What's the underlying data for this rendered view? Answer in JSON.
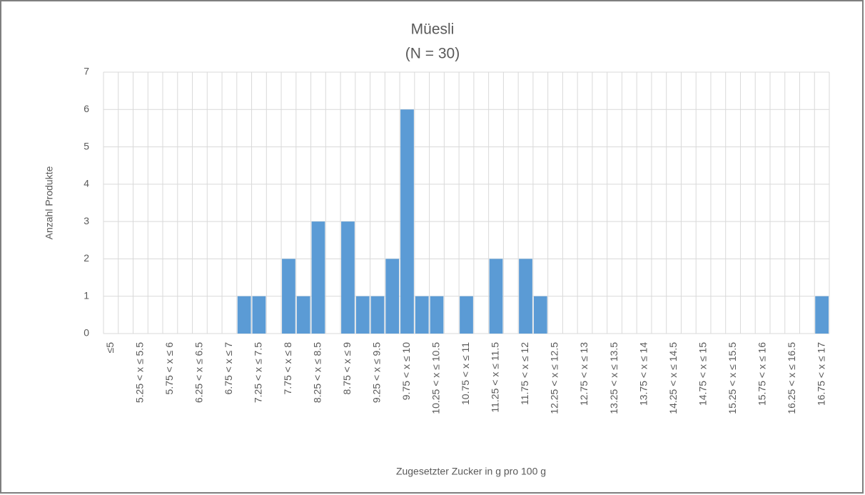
{
  "chart_data": {
    "type": "bar",
    "title": "Müesli",
    "subtitle": "(N = 30)",
    "y_label": "Anzahl Produkte",
    "x_label": "Zugesetzter Zucker in g pro 100 g",
    "categories": [
      "≤5",
      null,
      "5.25 < x ≤ 5.5",
      null,
      "5.75 < x ≤ 6",
      null,
      "6.25 < x ≤ 6.5",
      null,
      "6.75 < x ≤ 7",
      null,
      "7.25 < x ≤ 7.5",
      null,
      "7.75 < x ≤ 8",
      null,
      "8.25 < x ≤ 8.5",
      null,
      "8.75 < x ≤ 9",
      null,
      "9.25 < x ≤ 9.5",
      null,
      "9.75 < x ≤ 10",
      null,
      "10.25 < x ≤ 10.5",
      null,
      "10.75 < x ≤ 11",
      null,
      "11.25 < x ≤ 11.5",
      null,
      "11.75 < x ≤ 12",
      null,
      "12.25 < x ≤ 12.5",
      null,
      "12.75 < x ≤ 13",
      null,
      "13.25 < x ≤ 13.5",
      null,
      "13.75 < x ≤ 14",
      null,
      "14.25 < x ≤ 14.5",
      null,
      "14.75 < x ≤ 15",
      null,
      "15.25 < x ≤ 15.5",
      null,
      "15.75 < x ≤ 16",
      null,
      "16.25 < x ≤ 16.5",
      null,
      "16.75 < x ≤ 17"
    ],
    "values": [
      0,
      0,
      0,
      0,
      0,
      0,
      0,
      0,
      0,
      1,
      1,
      0,
      2,
      1,
      3,
      0,
      3,
      1,
      1,
      2,
      6,
      1,
      1,
      0,
      1,
      0,
      2,
      0,
      2,
      1,
      0,
      0,
      0,
      0,
      0,
      0,
      0,
      0,
      0,
      0,
      0,
      0,
      0,
      0,
      0,
      0,
      0,
      0,
      1
    ],
    "color": "#5b9bd5",
    "ylim": [
      0,
      7
    ],
    "yticks": [
      0,
      1,
      2,
      3,
      4,
      5,
      6,
      7
    ],
    "grid": true
  }
}
